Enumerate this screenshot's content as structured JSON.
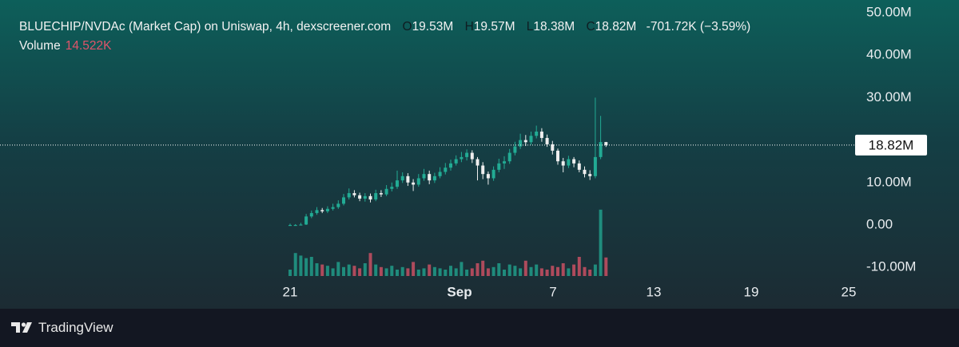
{
  "chart_data": {
    "type": "candlestick",
    "title": "BLUECHIP/NVDAc (Market Cap) on Uniswap, 4h, dexscreener.com",
    "legend": {
      "open_key": "O",
      "open": "19.53M",
      "high_key": "H",
      "high": "19.57M",
      "low_key": "L",
      "low": "18.38M",
      "close_key": "C",
      "close": "18.82M",
      "change": "-701.72K (−3.59%)",
      "volume_key": "Volume",
      "volume": "14.522K"
    },
    "up_color": "#22ab94",
    "down_color": "#eeeeee",
    "volume_up_color": "#22ab94",
    "volume_down_color": "#e0546a",
    "x_labels": [
      "21",
      "Sep",
      "7",
      "13",
      "19",
      "25"
    ],
    "open": [
      0,
      0,
      0,
      0.1,
      2.0,
      2.8,
      3.5,
      3.2,
      3.8,
      4.2,
      5.0,
      6.5,
      7.5,
      7.0,
      6.2,
      6.8,
      6.0,
      7.5,
      7.2,
      8.5,
      9.0,
      10.5,
      11.5,
      10.0,
      9.5,
      11.0,
      12.0,
      10.5,
      11.5,
      12.5,
      13.5,
      14.5,
      15.5,
      16.0,
      17.0,
      15.5,
      14.0,
      12.0,
      11.0,
      13.0,
      14.5,
      15.0,
      17.0,
      18.5,
      20.0,
      19.5,
      21.0,
      22.0,
      20.5,
      19.0,
      17.5,
      15.0,
      14.0,
      15.5,
      14.5,
      13.0,
      12.0,
      11.5,
      16.0,
      19.53
    ],
    "high": [
      0.3,
      0.2,
      0.5,
      2.6,
      3.4,
      4.2,
      4.0,
      4.4,
      5.0,
      5.8,
      7.3,
      8.6,
      8.2,
      7.6,
      7.5,
      7.4,
      8.3,
      8.2,
      9.4,
      10.0,
      12.8,
      12.4,
      12.2,
      10.8,
      12.0,
      13.2,
      12.8,
      12.3,
      13.6,
      14.6,
      15.4,
      16.4,
      17.2,
      17.8,
      17.6,
      16.0,
      14.8,
      12.6,
      13.8,
      15.6,
      16.2,
      17.9,
      19.6,
      21.5,
      21.2,
      22.0,
      23.4,
      22.8,
      21.3,
      19.8,
      18.0,
      15.8,
      16.3,
      16.0,
      15.2,
      13.8,
      12.9,
      30.0,
      25.7,
      19.57
    ],
    "low": [
      0,
      0,
      0,
      0,
      1.6,
      2.4,
      2.8,
      2.8,
      3.4,
      3.8,
      4.6,
      6.0,
      6.5,
      5.6,
      5.5,
      5.3,
      5.6,
      6.6,
      6.8,
      7.9,
      8.5,
      9.9,
      9.2,
      8.0,
      9.0,
      10.4,
      9.6,
      9.9,
      11.0,
      11.9,
      12.8,
      14.0,
      14.8,
      15.2,
      14.6,
      10.5,
      10.8,
      9.5,
      10.4,
      12.4,
      13.2,
      14.4,
      16.4,
      17.9,
      18.6,
      18.9,
      20.4,
      19.6,
      18.4,
      16.6,
      14.2,
      12.4,
      13.4,
      13.6,
      12.4,
      11.2,
      10.6,
      11.0,
      15.5,
      18.38
    ],
    "close": [
      0,
      0,
      0.1,
      2.0,
      2.8,
      3.5,
      3.2,
      3.8,
      4.2,
      5.0,
      6.5,
      7.5,
      7.0,
      6.2,
      6.8,
      6.0,
      7.5,
      7.2,
      8.5,
      9.0,
      10.5,
      11.5,
      10.0,
      9.5,
      11.0,
      12.0,
      10.5,
      11.5,
      12.5,
      13.5,
      14.5,
      15.5,
      16.0,
      17.0,
      15.5,
      14.0,
      12.0,
      11.0,
      13.0,
      14.5,
      15.0,
      17.0,
      18.5,
      20.0,
      19.5,
      21.0,
      22.0,
      20.5,
      19.0,
      17.5,
      15.0,
      14.0,
      15.5,
      14.5,
      13.0,
      12.0,
      11.5,
      16.0,
      19.53,
      18.82
    ],
    "volume": [
      5,
      18,
      16,
      14,
      15,
      10,
      9,
      8,
      6,
      11,
      7,
      9,
      8,
      6,
      10,
      18,
      9,
      7,
      6,
      8,
      5,
      7,
      6,
      11,
      5,
      6,
      9,
      7,
      6,
      5,
      8,
      6,
      11,
      5,
      6,
      10,
      12,
      6,
      7,
      10,
      5,
      9,
      8,
      6,
      12,
      7,
      9,
      6,
      5,
      8,
      7,
      10,
      6,
      9,
      15,
      7,
      5,
      9,
      52,
      14.522
    ],
    "ylim": [
      -11,
      52.5
    ],
    "yticks": [
      {
        "value": 50,
        "label": "50.00M"
      },
      {
        "value": 40,
        "label": "40.00M"
      },
      {
        "value": 30,
        "label": "30.00M"
      },
      {
        "value": 10,
        "label": "10.00M"
      },
      {
        "value": 0,
        "label": "0.00"
      },
      {
        "value": -10,
        "label": "-10.00M"
      }
    ],
    "last_price": 18.82,
    "brand": "TradingView"
  }
}
